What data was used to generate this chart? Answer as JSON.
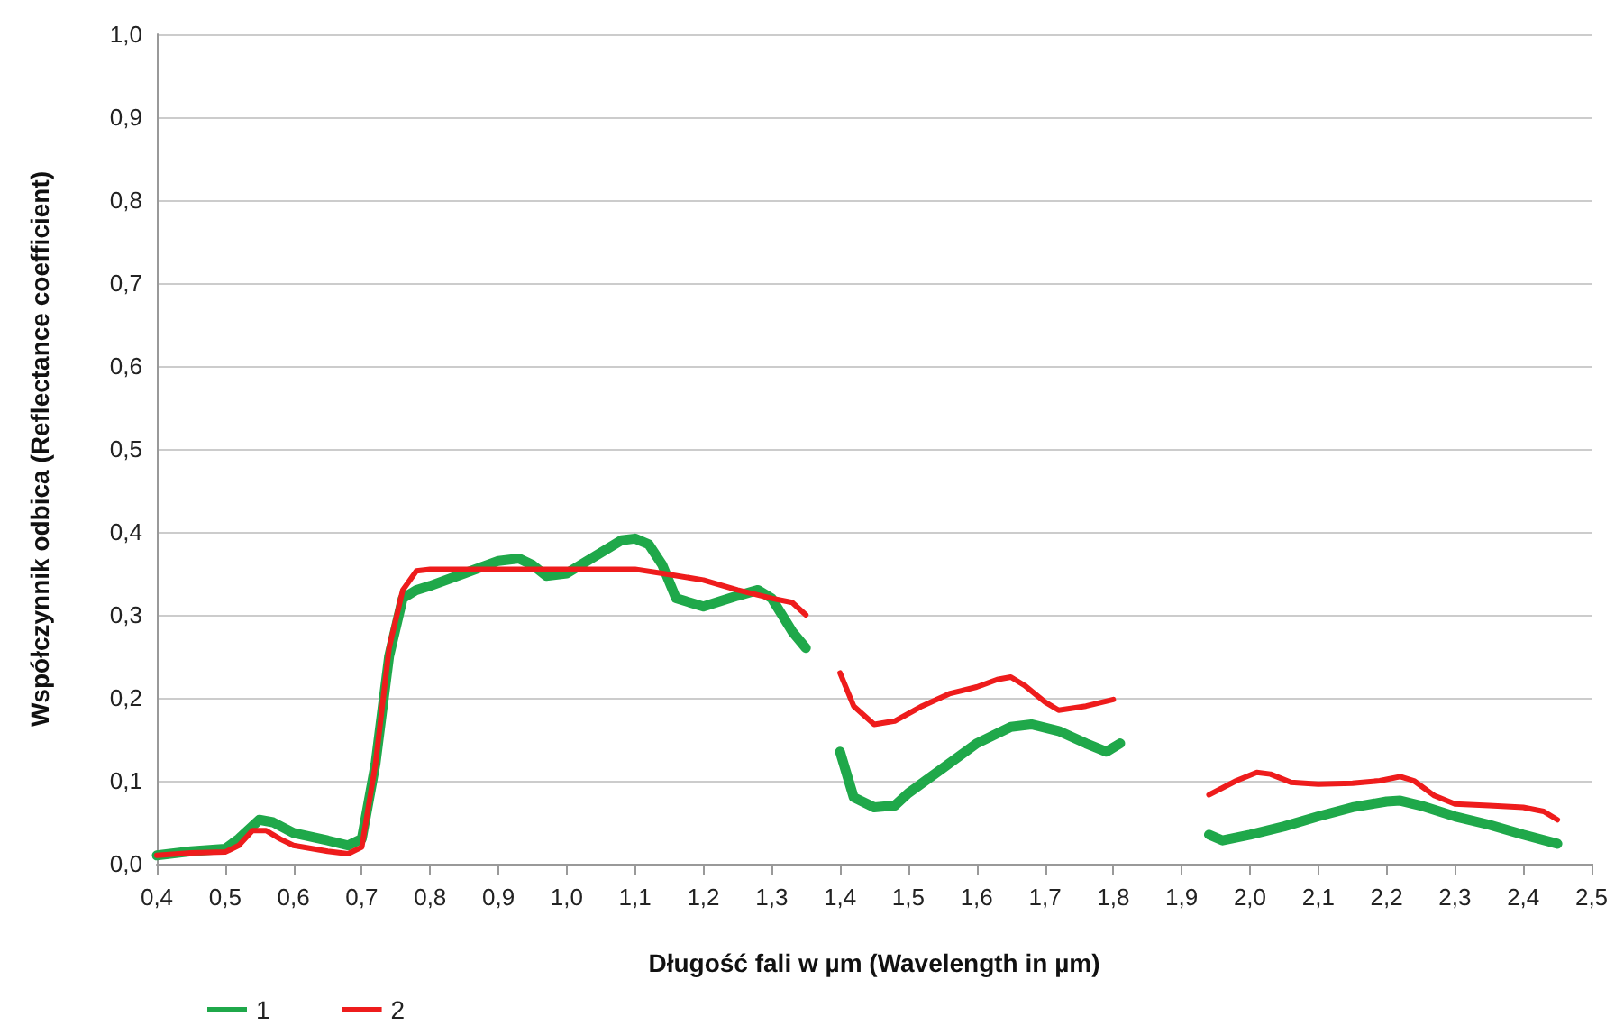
{
  "chart_data": {
    "type": "line",
    "xlabel": "Długość fali w µm (Wavelength in µm)",
    "ylabel": "Współczynnik odbica (Reflectance coefficient)",
    "xlim": [
      0.4,
      2.5
    ],
    "xticks": [
      {
        "value": 0.4,
        "label": "0,4"
      },
      {
        "value": 0.5,
        "label": "0,5"
      },
      {
        "value": 0.6,
        "label": "0,6"
      },
      {
        "value": 0.7,
        "label": "0,7"
      },
      {
        "value": 0.8,
        "label": "0,8"
      },
      {
        "value": 0.9,
        "label": "0,9"
      },
      {
        "value": 1.0,
        "label": "1,0"
      },
      {
        "value": 1.1,
        "label": "1,1"
      },
      {
        "value": 1.2,
        "label": "1,2"
      },
      {
        "value": 1.3,
        "label": "1,3"
      },
      {
        "value": 1.4,
        "label": "1,4"
      },
      {
        "value": 1.5,
        "label": "1,5"
      },
      {
        "value": 1.6,
        "label": "1,6"
      },
      {
        "value": 1.7,
        "label": "1,7"
      },
      {
        "value": 1.8,
        "label": "1,8"
      },
      {
        "value": 1.9,
        "label": "1,9"
      },
      {
        "value": 2.0,
        "label": "2,0"
      },
      {
        "value": 2.1,
        "label": "2,1"
      },
      {
        "value": 2.2,
        "label": "2,2"
      },
      {
        "value": 2.3,
        "label": "2,3"
      },
      {
        "value": 2.4,
        "label": "2,4"
      },
      {
        "value": 2.5,
        "label": "2,5"
      }
    ],
    "ylim": [
      0,
      1
    ],
    "yticks": [
      {
        "value": 0,
        "label": "0,0"
      },
      {
        "value": 0.1,
        "label": "0,1"
      },
      {
        "value": 0.2,
        "label": "0,2"
      },
      {
        "value": 0.3,
        "label": "0,3"
      },
      {
        "value": 0.4,
        "label": "0,4"
      },
      {
        "value": 0.5,
        "label": "0,5"
      },
      {
        "value": 0.6,
        "label": "0,6"
      },
      {
        "value": 0.7,
        "label": "0,7"
      },
      {
        "value": 0.8,
        "label": "0,8"
      },
      {
        "value": 0.9,
        "label": "0,9"
      },
      {
        "value": 1.0,
        "label": "1,0"
      }
    ],
    "grid": "y",
    "legend": "bottom left",
    "marker": "none",
    "line_style": "solid",
    "series": [
      {
        "name": "1",
        "color": "#1fa84a",
        "x": [
          0.4,
          0.45,
          0.5,
          0.52,
          0.55,
          0.57,
          0.6,
          0.65,
          0.68,
          0.7,
          0.72,
          0.74,
          0.76,
          0.78,
          0.8,
          0.85,
          0.9,
          0.93,
          0.95,
          0.97,
          1.0,
          1.05,
          1.08,
          1.1,
          1.12,
          1.14,
          1.16,
          1.2,
          1.25,
          1.28,
          1.3,
          1.33,
          1.35,
          1.37,
          1.4,
          1.42,
          1.45,
          1.48,
          1.5,
          1.55,
          1.6,
          1.65,
          1.68,
          1.72,
          1.76,
          1.79,
          1.81,
          1.87,
          1.94,
          1.96,
          2.0,
          2.05,
          2.1,
          2.15,
          2.2,
          2.22,
          2.25,
          2.3,
          2.35,
          2.4,
          2.45
        ],
        "values": [
          0.01,
          0.015,
          0.018,
          0.03,
          0.053,
          0.05,
          0.037,
          0.028,
          0.022,
          0.03,
          0.12,
          0.25,
          0.32,
          0.33,
          0.335,
          0.35,
          0.365,
          0.368,
          0.36,
          0.347,
          0.35,
          0.375,
          0.39,
          0.392,
          0.385,
          0.36,
          0.32,
          0.31,
          0.323,
          0.33,
          0.32,
          0.28,
          0.26,
          null,
          0.135,
          0.08,
          0.068,
          0.07,
          0.085,
          0.115,
          0.145,
          0.165,
          0.168,
          0.16,
          0.145,
          0.135,
          0.145,
          null,
          0.035,
          0.028,
          0.035,
          0.045,
          0.057,
          0.068,
          0.075,
          0.076,
          0.07,
          0.057,
          0.047,
          0.035,
          0.024
        ]
      },
      {
        "name": "2",
        "color": "#ee1c1c",
        "x": [
          0.4,
          0.45,
          0.5,
          0.52,
          0.54,
          0.56,
          0.58,
          0.6,
          0.65,
          0.68,
          0.7,
          0.72,
          0.74,
          0.76,
          0.78,
          0.8,
          0.9,
          1.0,
          1.1,
          1.14,
          1.2,
          1.25,
          1.3,
          1.33,
          1.35,
          1.37,
          1.4,
          1.42,
          1.45,
          1.48,
          1.52,
          1.56,
          1.6,
          1.63,
          1.65,
          1.67,
          1.7,
          1.72,
          1.76,
          1.8,
          1.87,
          1.94,
          1.98,
          2.01,
          2.03,
          2.06,
          2.1,
          2.15,
          2.19,
          2.22,
          2.24,
          2.27,
          2.3,
          2.35,
          2.4,
          2.43,
          2.45
        ],
        "values": [
          0.01,
          0.013,
          0.014,
          0.022,
          0.04,
          0.04,
          0.03,
          0.022,
          0.015,
          0.012,
          0.02,
          0.12,
          0.26,
          0.33,
          0.353,
          0.355,
          0.355,
          0.355,
          0.355,
          0.35,
          0.342,
          0.33,
          0.32,
          0.315,
          0.3,
          null,
          0.23,
          0.19,
          0.168,
          0.172,
          0.19,
          0.205,
          0.213,
          0.222,
          0.225,
          0.215,
          0.195,
          0.185,
          0.19,
          0.198,
          null,
          0.083,
          0.1,
          0.11,
          0.108,
          0.098,
          0.096,
          0.097,
          0.1,
          0.105,
          0.1,
          0.082,
          0.072,
          0.07,
          0.068,
          0.063,
          0.053
        ]
      }
    ]
  }
}
